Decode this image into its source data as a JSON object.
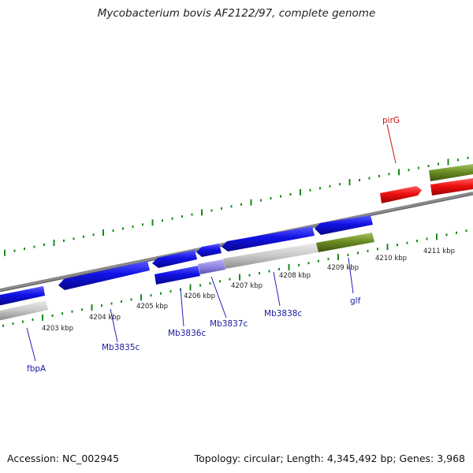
{
  "title": "Mycobacterium bovis AF2122/97, complete genome",
  "footer": {
    "accession": "Accession: NC_002945",
    "summary": "Topology: circular; Length: 4,345,492 bp; Genes: 3,968"
  },
  "kbp_labels": [
    "4203 kbp",
    "4204 kbp",
    "4205 kbp",
    "4206 kbp",
    "4207 kbp",
    "4208 kbp",
    "4209 kbp",
    "4210 kbp",
    "4211 kbp"
  ],
  "gene_labels": [
    "fbpA",
    "Mb3835c",
    "Mb3836c",
    "Mb3837c",
    "Mb3838c",
    "glf",
    "pirG"
  ],
  "colors": {
    "cds_blue": "#1010e0",
    "cds_red": "#ee1111",
    "cds_green": "#6b8e23",
    "cds_gray": "#c8c8c8",
    "cds_lavender": "#8f86e0",
    "tick_green": "#1a8a1a",
    "backbone": "#777777"
  }
}
